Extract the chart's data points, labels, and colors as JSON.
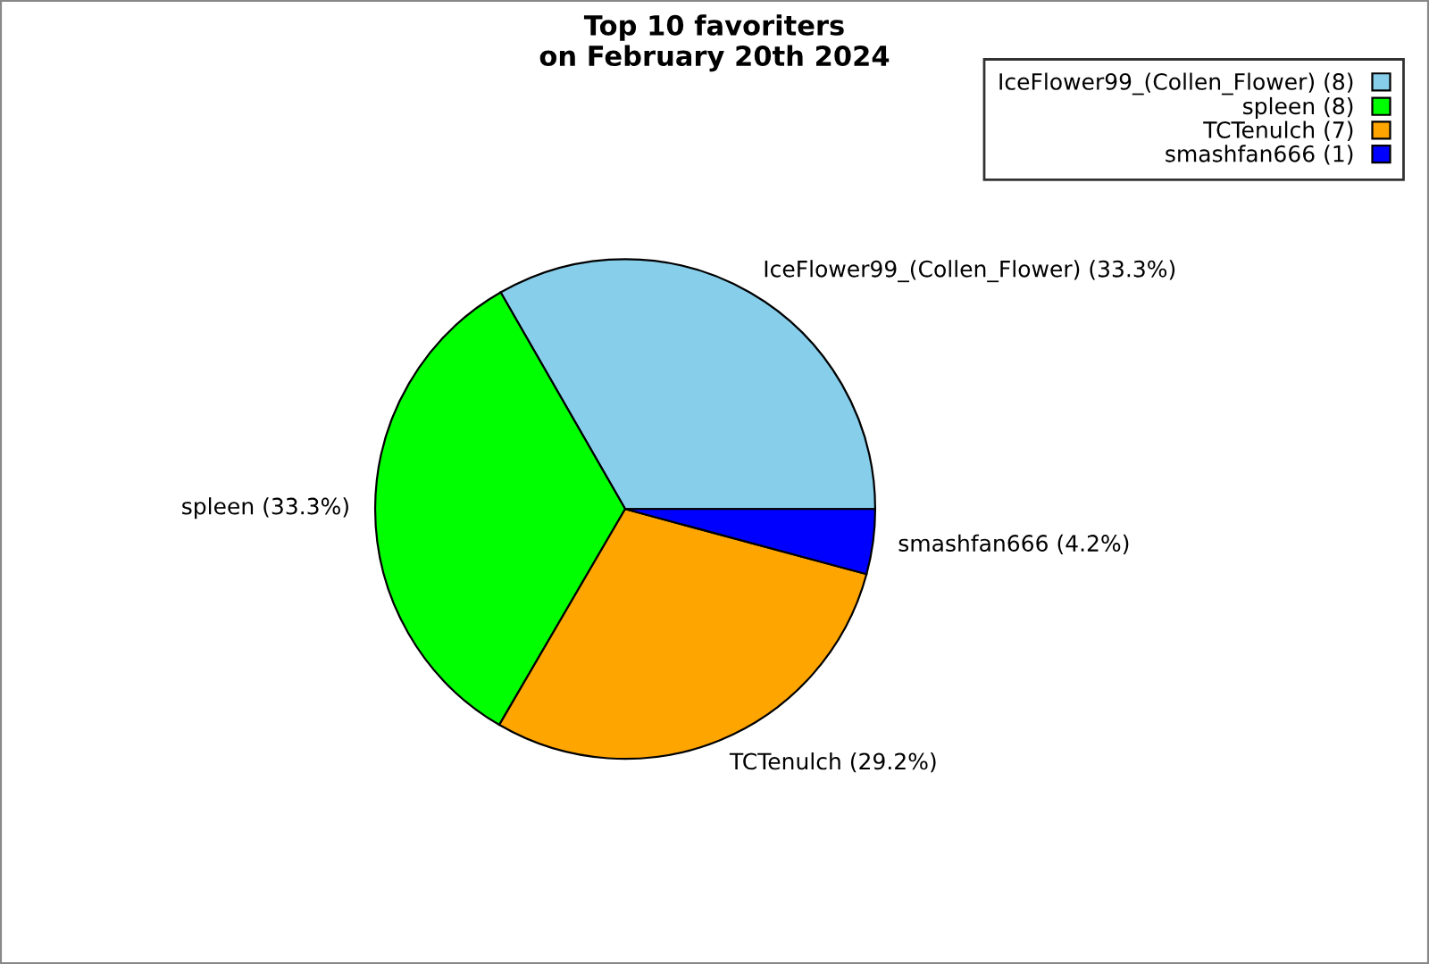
{
  "chart_data": {
    "type": "pie",
    "title": "Top 10 favoriters\non February 20th 2024",
    "categories": [
      "IceFlower99_(Collen_Flower) (8)",
      "spleen (8)",
      "TCTenulch (7)",
      "smashfan666 (1)"
    ],
    "values": [
      33.3,
      33.3,
      29.2,
      4.2
    ],
    "colors": [
      "#87ceeb",
      "#00ff00",
      "#ffa500",
      "#0000ff"
    ],
    "value_labels": [
      "IceFlower99_(Collen_Flower) (33.3%)",
      "spleen (33.3%)",
      "TCTenulch (29.2%)",
      "smashfan666 (4.2%)"
    ],
    "legend": "top right"
  }
}
